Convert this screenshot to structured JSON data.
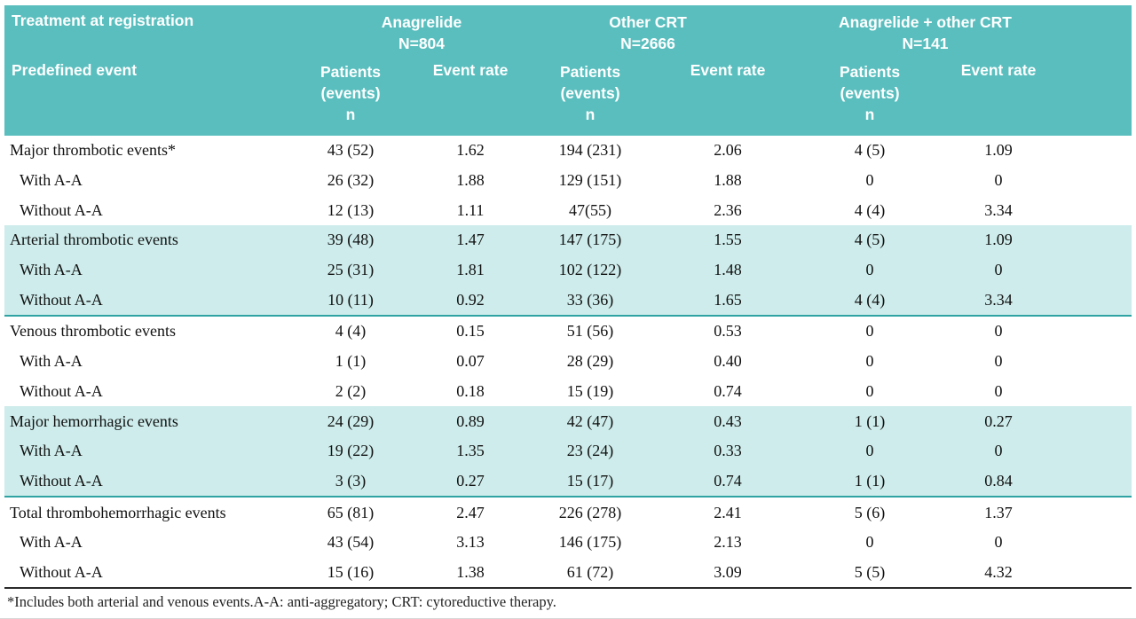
{
  "colors": {
    "header_teal": "#5abebe",
    "shaded_row_teal": "#cdeceb",
    "section_divider_teal": "#2fa3a3",
    "footnote_rule_dark": "#2a2a2a"
  },
  "table": {
    "header": {
      "treatment_label": "Treatment at registration",
      "predefined_label": "Predefined event",
      "groups": [
        {
          "title": "Anagrelide",
          "n": "N=804"
        },
        {
          "title": "Other CRT",
          "n": "N=2666"
        },
        {
          "title": "Anagrelide + other CRT",
          "n": "N=141"
        }
      ],
      "patients_lines": [
        "Patients",
        "(events)",
        "n"
      ],
      "event_rate_label": "Event rate"
    },
    "rows": [
      {
        "label": "Major thrombotic events*",
        "indent": false,
        "shaded": false,
        "divider": "",
        "values": [
          "43 (52)",
          "1.62",
          "194 (231)",
          "2.06",
          "4 (5)",
          "1.09"
        ]
      },
      {
        "label": "With A-A",
        "indent": true,
        "shaded": false,
        "divider": "",
        "values": [
          "26 (32)",
          "1.88",
          "129 (151)",
          "1.88",
          "0",
          "0"
        ]
      },
      {
        "label": "Without A-A",
        "indent": true,
        "shaded": false,
        "divider": "",
        "values": [
          "12 (13)",
          "1.11",
          "47(55)",
          "2.36",
          "4 (4)",
          "3.34"
        ]
      },
      {
        "label": "Arterial thrombotic events",
        "indent": false,
        "shaded": true,
        "divider": "",
        "values": [
          "39 (48)",
          "1.47",
          "147 (175)",
          "1.55",
          "4 (5)",
          "1.09"
        ]
      },
      {
        "label": "With A-A",
        "indent": true,
        "shaded": true,
        "divider": "",
        "values": [
          "25 (31)",
          "1.81",
          "102 (122)",
          "1.48",
          "0",
          "0"
        ]
      },
      {
        "label": "Without A-A",
        "indent": true,
        "shaded": true,
        "divider": "teal",
        "values": [
          "10 (11)",
          "0.92",
          "33 (36)",
          "1.65",
          "4 (4)",
          "3.34"
        ]
      },
      {
        "label": "Venous thrombotic events",
        "indent": false,
        "shaded": false,
        "divider": "",
        "values": [
          "4 (4)",
          "0.15",
          "51 (56)",
          "0.53",
          "0",
          "0"
        ]
      },
      {
        "label": "With A-A",
        "indent": true,
        "shaded": false,
        "divider": "",
        "values": [
          "1 (1)",
          "0.07",
          "28 (29)",
          "0.40",
          "0",
          "0"
        ]
      },
      {
        "label": "Without A-A",
        "indent": true,
        "shaded": false,
        "divider": "",
        "values": [
          "2 (2)",
          "0.18",
          "15 (19)",
          "0.74",
          "0",
          "0"
        ]
      },
      {
        "label": "Major hemorrhagic events",
        "indent": false,
        "shaded": true,
        "divider": "",
        "values": [
          "24 (29)",
          "0.89",
          "42 (47)",
          "0.43",
          "1 (1)",
          "0.27"
        ]
      },
      {
        "label": "With A-A",
        "indent": true,
        "shaded": true,
        "divider": "",
        "values": [
          "19 (22)",
          "1.35",
          "23 (24)",
          "0.33",
          "0",
          "0"
        ]
      },
      {
        "label": "Without A-A",
        "indent": true,
        "shaded": true,
        "divider": "teal",
        "values": [
          "3 (3)",
          "0.27",
          "15 (17)",
          "0.74",
          "1 (1)",
          "0.84"
        ]
      },
      {
        "label": "Total thrombohemorrhagic events",
        "indent": false,
        "shaded": false,
        "divider": "",
        "values": [
          "65 (81)",
          "2.47",
          "226 (278)",
          "2.41",
          "5 (6)",
          "1.37"
        ]
      },
      {
        "label": "With A-A",
        "indent": true,
        "shaded": false,
        "divider": "",
        "values": [
          "43 (54)",
          "3.13",
          "146 (175)",
          "2.13",
          "0",
          "0"
        ]
      },
      {
        "label": "Without A-A",
        "indent": true,
        "shaded": false,
        "divider": "dark",
        "values": [
          "15 (16)",
          "1.38",
          "61 (72)",
          "3.09",
          "5 (5)",
          "4.32"
        ]
      }
    ],
    "footnote": "*Includes both arterial and venous events.A-A: anti-aggregatory; CRT: cytoreductive therapy."
  }
}
